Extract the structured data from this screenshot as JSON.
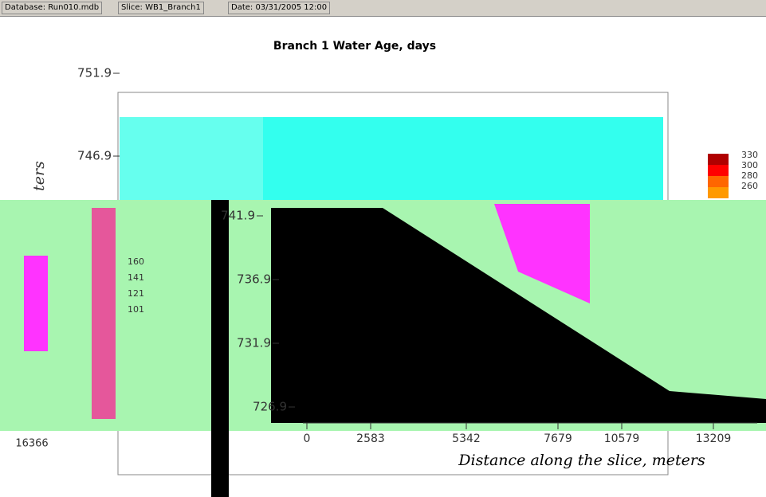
{
  "status_bar": {
    "database": "Database: Run010.mdb",
    "slice": "Slice: WB1_Branch1",
    "date": "Date: 03/31/2005 12:00"
  },
  "plot": {
    "title": "Branch 1 Water Age, days",
    "y_axis": {
      "label": "ters",
      "ticks": [
        "751.9",
        "746.9",
        "741.9",
        "736.9",
        "731.9",
        "726.9"
      ]
    },
    "x_axis": {
      "label": "Distance along the slice, meters",
      "ticks": [
        "0",
        "2583",
        "5342",
        "7679",
        "10579",
        "13209"
      ],
      "left_label": "16366"
    },
    "legend": {
      "labels": [
        "330",
        "300",
        "280",
        "260"
      ]
    },
    "legend_2": {
      "labels": [
        "160",
        "141",
        "121",
        "101"
      ]
    }
  }
}
